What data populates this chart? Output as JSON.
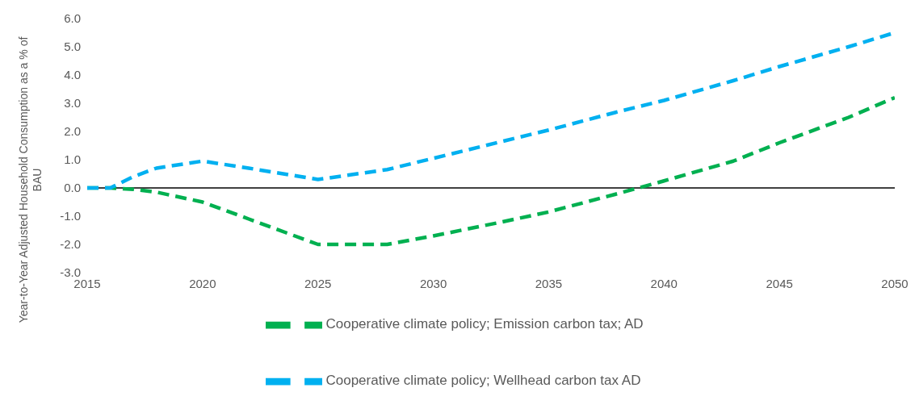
{
  "chart_data": {
    "type": "line",
    "ylabel": "Year-to-Year Adjusted Household Consumption as a % of BAU",
    "x": [
      2015,
      2016,
      2017,
      2018,
      2020,
      2022,
      2025,
      2028,
      2030,
      2033,
      2035,
      2038,
      2040,
      2043,
      2045,
      2048,
      2050
    ],
    "series": [
      {
        "name": "Cooperative climate policy; Emission carbon tax; AD",
        "color": "#00b050",
        "values": [
          0,
          0,
          -0.05,
          -0.15,
          -0.5,
          -1.1,
          -2.0,
          -2.0,
          -1.7,
          -1.2,
          -0.85,
          -0.2,
          0.25,
          0.95,
          1.6,
          2.5,
          3.2
        ]
      },
      {
        "name": "Cooperative climate policy; Wellhead carbon tax AD",
        "color": "#00b0f0",
        "values": [
          0,
          0,
          0.4,
          0.7,
          0.95,
          0.7,
          0.3,
          0.65,
          1.05,
          1.65,
          2.05,
          2.7,
          3.1,
          3.8,
          4.3,
          5.0,
          5.5
        ]
      }
    ],
    "xlim": [
      2015,
      2050
    ],
    "xticks": [
      2015,
      2020,
      2025,
      2030,
      2035,
      2040,
      2045,
      2050
    ],
    "ylim": [
      -3,
      6
    ],
    "yticks": [
      {
        "value": -3,
        "label": "-3.0"
      },
      {
        "value": -2,
        "label": "-2.0"
      },
      {
        "value": -1,
        "label": "-1.0"
      },
      {
        "value": 0,
        "label": "0.0"
      },
      {
        "value": 1,
        "label": "1.0"
      },
      {
        "value": 2,
        "label": "2.0"
      },
      {
        "value": 3,
        "label": "3.0"
      },
      {
        "value": 4,
        "label": "4.0"
      },
      {
        "value": 5,
        "label": "5.0"
      },
      {
        "value": 6,
        "label": "6.0"
      }
    ],
    "ref_lines": [
      {
        "axis": "y",
        "value": 0,
        "color": "#000000"
      }
    ],
    "grid": false,
    "legend": "bottom",
    "marker": "none",
    "line_style": "dashed"
  }
}
